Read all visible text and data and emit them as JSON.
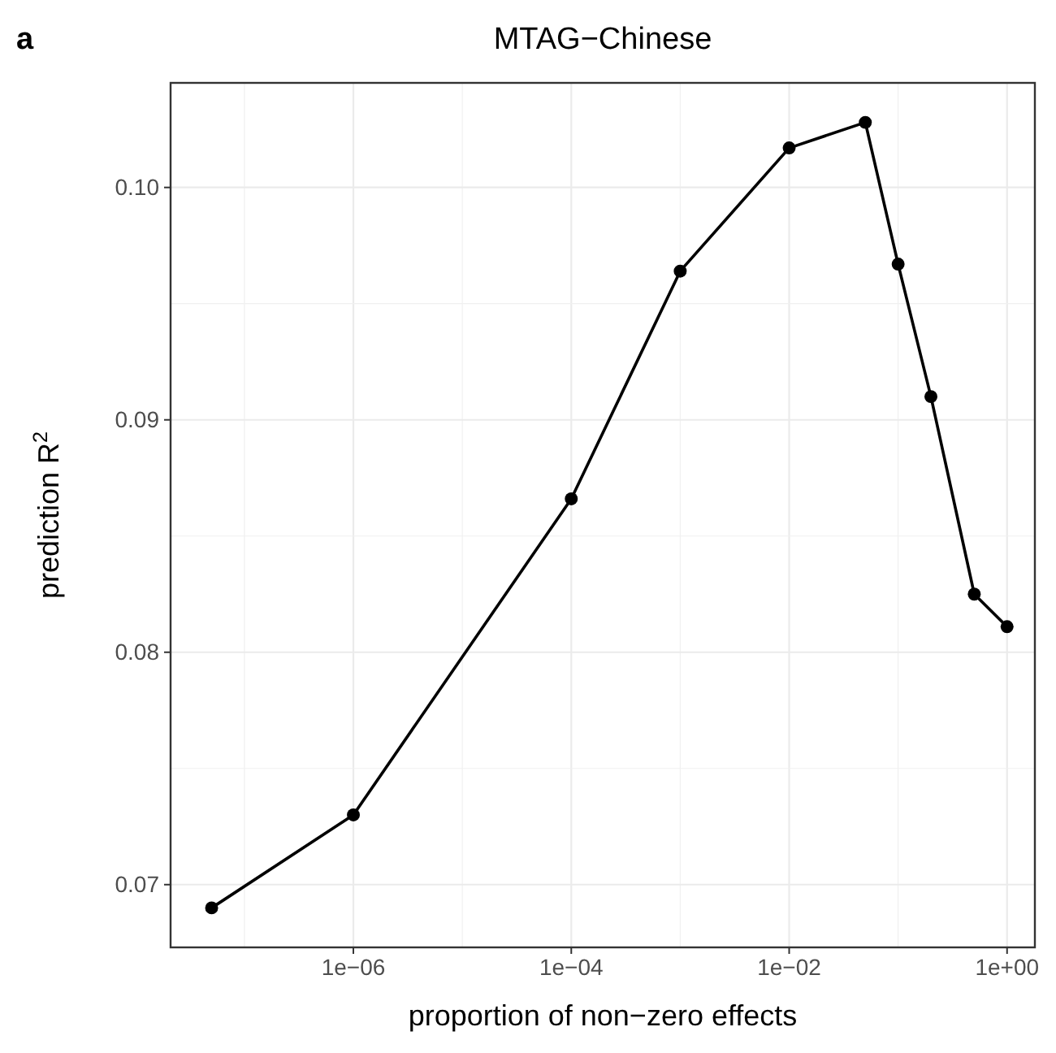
{
  "chart_data": {
    "type": "line",
    "title": "MTAG−Chinese",
    "xlabel": "proportion of non−zero effects",
    "ylabel": "prediction R$^{2}$",
    "annotations": [
      "a"
    ],
    "x": [
      5e-08,
      1e-06,
      0.0001,
      0.001,
      0.01,
      0.05,
      0.1,
      0.2,
      0.5,
      1
    ],
    "series": [
      {
        "color": "#000000",
        "values": [
          0.069,
          0.073,
          0.0866,
          0.0964,
          0.1017,
          0.1028,
          0.0967,
          0.091,
          0.0825,
          0.0811
        ]
      }
    ],
    "log": "x",
    "xlim": [
      2.1e-08,
      1.8
    ],
    "ylim": [
      0.0673,
      0.1045
    ],
    "xticks": [
      {
        "value": 1e-06,
        "label": "1e−06"
      },
      {
        "value": 0.0001,
        "label": "1e−04"
      },
      {
        "value": 0.01,
        "label": "1e−02"
      },
      {
        "value": 1,
        "label": "1e+00"
      }
    ],
    "yticks": [
      {
        "value": 0.07,
        "label": "0.07"
      },
      {
        "value": 0.08,
        "label": "0.08"
      },
      {
        "value": 0.09,
        "label": "0.09"
      },
      {
        "value": 0.1,
        "label": "0.10"
      }
    ],
    "grid": true,
    "marker": "circle",
    "line_style": "solid"
  }
}
